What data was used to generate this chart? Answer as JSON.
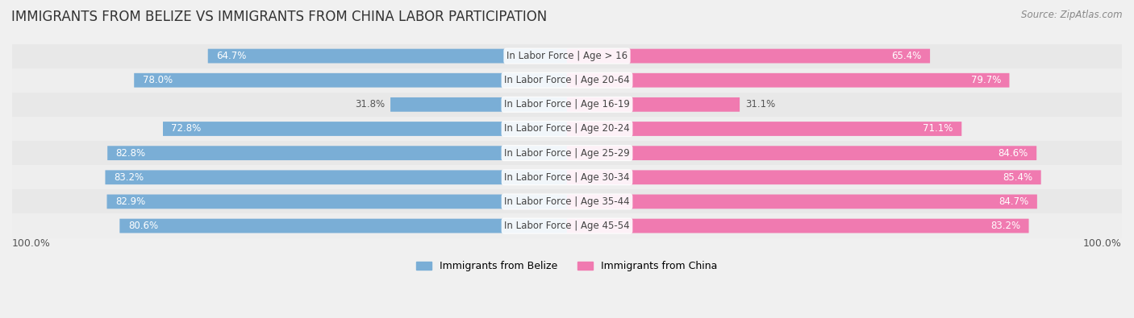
{
  "title": "IMMIGRANTS FROM BELIZE VS IMMIGRANTS FROM CHINA LABOR PARTICIPATION",
  "source": "Source: ZipAtlas.com",
  "categories": [
    "In Labor Force | Age > 16",
    "In Labor Force | Age 20-64",
    "In Labor Force | Age 16-19",
    "In Labor Force | Age 20-24",
    "In Labor Force | Age 25-29",
    "In Labor Force | Age 30-34",
    "In Labor Force | Age 35-44",
    "In Labor Force | Age 45-54"
  ],
  "belize_values": [
    64.7,
    78.0,
    31.8,
    72.8,
    82.8,
    83.2,
    82.9,
    80.6
  ],
  "china_values": [
    65.4,
    79.7,
    31.1,
    71.1,
    84.6,
    85.4,
    84.7,
    83.2
  ],
  "belize_color": "#7aaed6",
  "china_color": "#f07ab0",
  "belize_label": "Immigrants from Belize",
  "china_label": "Immigrants from China",
  "background_color": "#f0f0f0",
  "title_fontsize": 12,
  "label_fontsize": 8.5,
  "value_fontsize": 8.5,
  "max_value": 100.0,
  "row_colors": [
    "#e8e8e8",
    "#eeeeee"
  ]
}
